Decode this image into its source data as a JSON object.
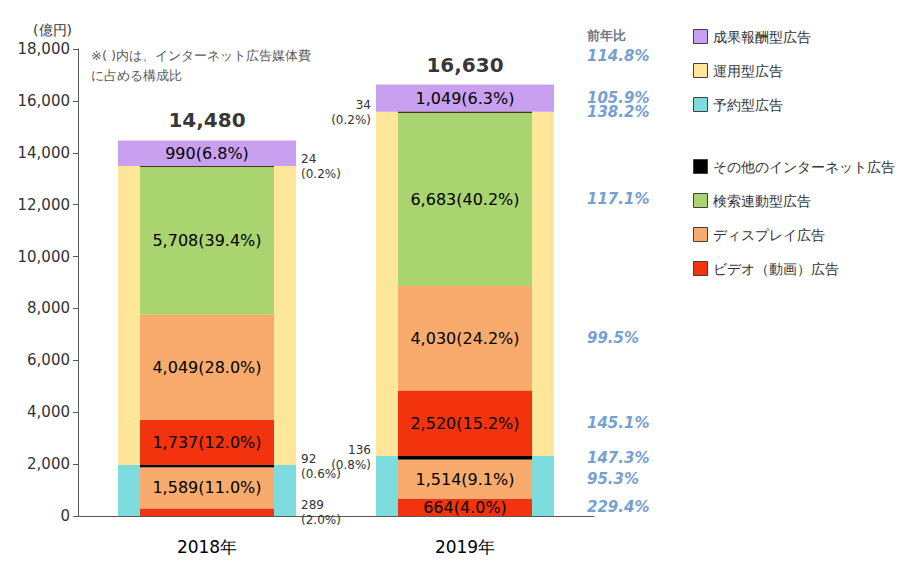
{
  "chart_data": {
    "type": "bar",
    "stacked": true,
    "data_labels": true,
    "grid": false,
    "note": "※( )内は、インターネット広告媒体費\nに占める構成比",
    "y_label": "(億円)",
    "categories": [
      "2018年",
      "2019年"
    ],
    "ylim": [
      0,
      18000
    ],
    "yticks": [
      0,
      {
        "value": 2000,
        "label": "2,000"
      },
      {
        "value": 4000,
        "label": "4,000"
      },
      {
        "value": 6000,
        "label": "6,000"
      },
      {
        "value": 8000,
        "label": "8,000"
      },
      {
        "value": 10000,
        "label": "10,000"
      },
      {
        "value": 12000,
        "label": "12,000"
      },
      {
        "value": 14000,
        "label": "14,000"
      },
      {
        "value": 16000,
        "label": "16,000"
      },
      {
        "value": 18000,
        "label": "18,000"
      }
    ],
    "series": [
      {
        "name": "成果報酬型広告",
        "color": "#c9a0f0"
      },
      {
        "name": "運用型広告",
        "color": "#ffe699"
      },
      {
        "name": "予約型広告",
        "color": "#7ddcdd"
      },
      {
        "name": "その他のインターネット広告",
        "color": "#000000"
      },
      {
        "name": "検索連動型広告",
        "color": "#a9d470"
      },
      {
        "name": "ディスプレイ広告",
        "color": "#f8ab6c"
      },
      {
        "name": "ビデオ（動画）広告",
        "color": "#f2330d"
      }
    ],
    "groups": [
      {
        "series": "予約型広告",
        "segments": [
          {
            "series": "ビデオ（動画）広告",
            "values": [
              289,
              664
            ],
            "value_labels": [
              "289\n(2.0%)",
              "664(4.0%)"
            ],
            "growth": "229.4%"
          },
          {
            "series": "ディスプレイ広告",
            "values": [
              1589,
              1514
            ],
            "value_labels": [
              "1,589(11.0%)",
              "1,514(9.1%)"
            ],
            "growth": "95.3%"
          },
          {
            "series": "その他のインターネット広告",
            "values": [
              92,
              136
            ],
            "value_labels": [
              "92\n(0.6%)",
              "136\n(0.8%)"
            ],
            "growth": "147.3%"
          }
        ]
      },
      {
        "series": "運用型広告",
        "segments": [
          {
            "series": "ビデオ（動画）広告",
            "values": [
              1737,
              2520
            ],
            "value_labels": [
              "1,737(12.0%)",
              "2,520(15.2%)"
            ],
            "growth": "145.1%"
          },
          {
            "series": "ディスプレイ広告",
            "values": [
              4049,
              4030
            ],
            "value_labels": [
              "4,049(28.0%)",
              "4,030(24.2%)"
            ],
            "growth": "99.5%"
          },
          {
            "series": "検索連動型広告",
            "values": [
              5708,
              6683
            ],
            "value_labels": [
              "5,708(39.4%)",
              "6,683(40.2%)"
            ],
            "growth": "117.1%"
          },
          {
            "series": "その他のインターネット広告",
            "values": [
              24,
              34
            ],
            "value_labels": [
              "24\n(0.2%)",
              "34\n(0.2%)"
            ],
            "growth": "138.2%"
          }
        ]
      },
      {
        "series": "成果報酬型広告",
        "values": [
          990,
          1049
        ],
        "value_labels": [
          "990(6.8%)",
          "1,049(6.3%)"
        ],
        "growth": "105.9%"
      }
    ],
    "total": {
      "values": [
        14480,
        16630
      ],
      "value_labels": [
        "14,480",
        "16,630"
      ],
      "growth_title": "前年比",
      "growth": "114.8%"
    }
  }
}
